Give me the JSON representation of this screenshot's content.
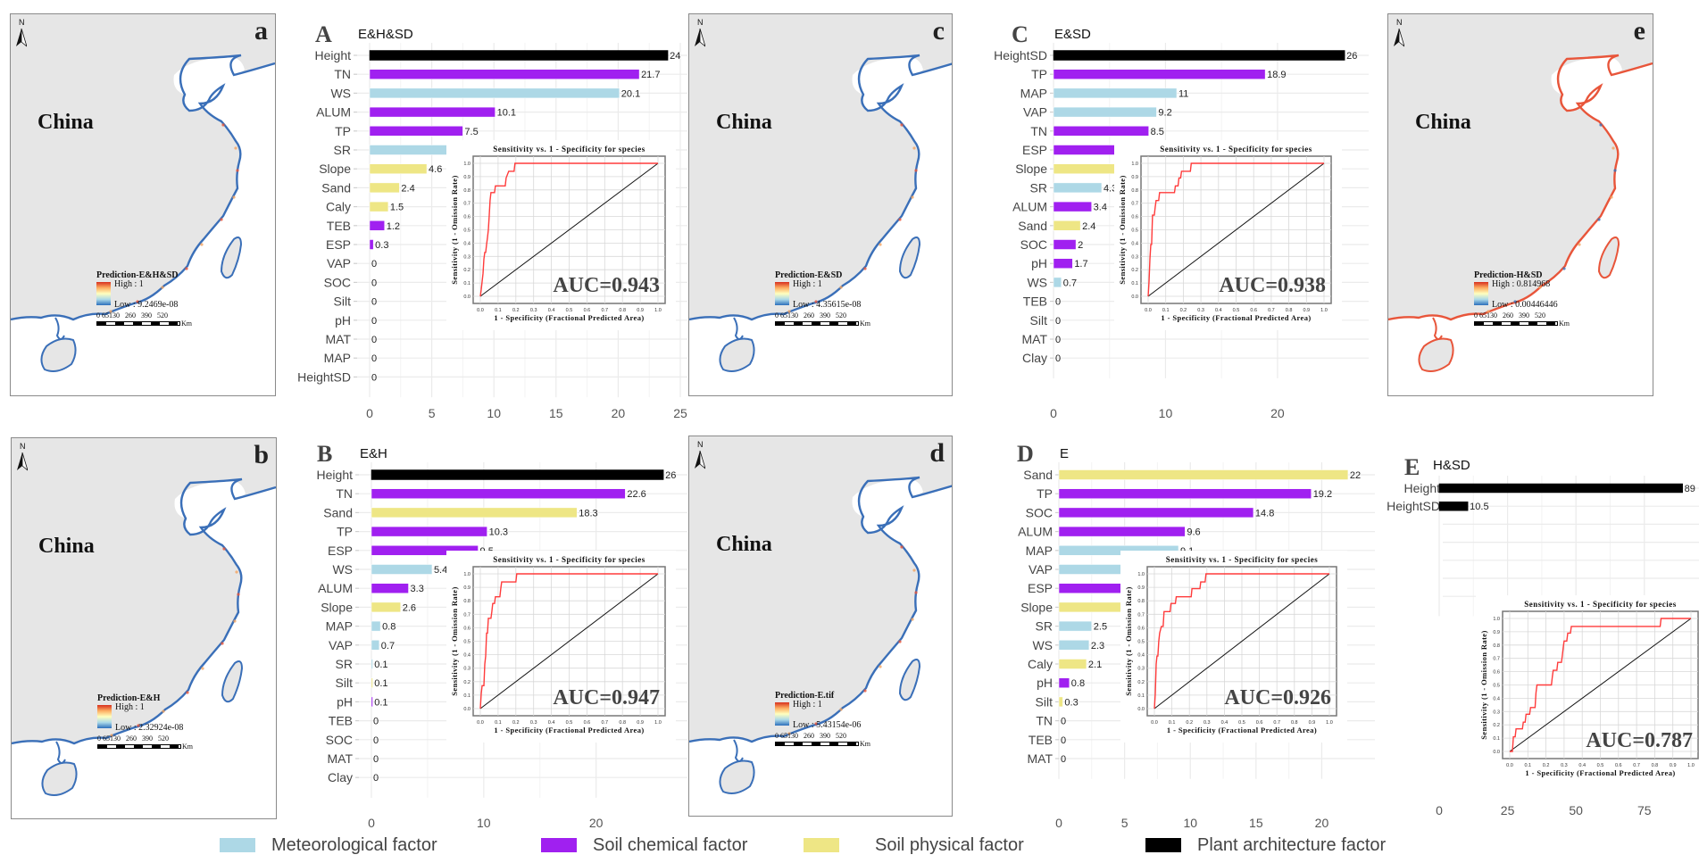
{
  "maps": [
    {
      "id": "a",
      "letter": "a",
      "country": "China",
      "north": "N",
      "legend_title": "Prediction-E&H&SD",
      "high": "High : 1",
      "low": "Low : 9.2469e-08",
      "scale": "0 65130   260   390   520",
      "unit": "Km",
      "risk": "low"
    },
    {
      "id": "c",
      "letter": "c",
      "country": "China",
      "north": "N",
      "legend_title": "Prediction-E&SD",
      "high": "High : 1",
      "low": "Low : 4.35615e-08",
      "scale": "0 65130   260   390   520",
      "unit": "Km",
      "risk": "low"
    },
    {
      "id": "e",
      "letter": "e",
      "country": "China",
      "north": "N",
      "legend_title": "Prediction-H&SD",
      "high": "High : 0.814968",
      "low": "Low : 0.00446446",
      "scale": "0 65130   260   390   520",
      "unit": "Km",
      "risk": "high"
    },
    {
      "id": "b",
      "letter": "b",
      "country": "China",
      "north": "N",
      "legend_title": "Prediction-E&H",
      "high": "High : 1",
      "low": "Low : 2.32924e-08",
      "scale": "0 65130   260   390   520",
      "unit": "Km",
      "risk": "low"
    },
    {
      "id": "d",
      "letter": "d",
      "country": "China",
      "north": "N",
      "legend_title": "Prediction-E.tif",
      "high": "High : 1",
      "low": "Low : 5.43154e-06",
      "scale": "0 65130   260   390   520",
      "unit": "Km",
      "risk": "low"
    }
  ],
  "colors": {
    "Meteorological factor": "#add8e6",
    "Soil chemical factor": "#a020f0",
    "Soil physical factor": "#eee685",
    "Plant architecture factor": "#000000",
    "roc_curve": "#ff3b3b",
    "roc_diagonal": "#111111"
  },
  "legend": [
    {
      "label": "Meteorological factor",
      "color": "#add8e6"
    },
    {
      "label": "Soil chemical factor",
      "color": "#a020f0"
    },
    {
      "label": "Soil physical factor",
      "color": "#eee685"
    },
    {
      "label": "Plant architecture factor",
      "color": "#000000"
    }
  ],
  "chart_data": [
    {
      "id": "A",
      "type": "bar",
      "orientation": "horizontal",
      "letter": "A",
      "title": "E&H&SD",
      "categories": [
        "Height",
        "TN",
        "WS",
        "ALUM",
        "TP",
        "SR",
        "Slope",
        "Sand",
        "Caly",
        "TEB",
        "ESP",
        "VAP",
        "SOC",
        "Silt",
        "pH",
        "MAT",
        "MAP",
        "HeightSD"
      ],
      "values": [
        24,
        21.7,
        20.1,
        10.1,
        7.5,
        6.4,
        4.6,
        2.4,
        1.5,
        1.2,
        0.3,
        0,
        0,
        0,
        0,
        0,
        0,
        0
      ],
      "value_labels": [
        "24",
        "21.7",
        "20.1",
        "10.1",
        "7.5",
        "6.4",
        "4.6",
        "2.4",
        "1.5",
        "1.2",
        "0.3",
        "0",
        "0",
        "0",
        "0",
        "0",
        "0",
        "0"
      ],
      "groups": [
        "Plant architecture factor",
        "Soil chemical factor",
        "Meteorological factor",
        "Soil chemical factor",
        "Soil chemical factor",
        "Meteorological factor",
        "Soil physical factor",
        "Soil physical factor",
        "Soil physical factor",
        "Soil chemical factor",
        "Soil chemical factor",
        "Meteorological factor",
        "Soil chemical factor",
        "Soil physical factor",
        "Soil chemical factor",
        "Meteorological factor",
        "Meteorological factor",
        "Plant architecture factor"
      ],
      "xlim": [
        0,
        25
      ],
      "xticks": [
        0,
        5,
        10,
        15,
        20,
        25
      ],
      "roc": {
        "title": "Sensitivity vs. 1 - Specificity for species",
        "xlabel": "1 - Specificity (Fractional Predicted Area)",
        "ylabel": "Sensitivity (1 - Omission Rate)",
        "auc": "AUC=0.943",
        "ticks": [
          "0.0",
          "0.1",
          "0.2",
          "0.3",
          "0.4",
          "0.5",
          "0.6",
          "0.7",
          "0.8",
          "0.9",
          "1.0"
        ],
        "curve": [
          [
            0,
            0
          ],
          [
            0.005,
            0.05
          ],
          [
            0.01,
            0.11
          ],
          [
            0.015,
            0.17
          ],
          [
            0.02,
            0.28
          ],
          [
            0.025,
            0.33
          ],
          [
            0.03,
            0.33
          ],
          [
            0.035,
            0.39
          ],
          [
            0.04,
            0.44
          ],
          [
            0.045,
            0.5
          ],
          [
            0.05,
            0.61
          ],
          [
            0.055,
            0.72
          ],
          [
            0.06,
            0.78
          ],
          [
            0.08,
            0.78
          ],
          [
            0.085,
            0.83
          ],
          [
            0.14,
            0.83
          ],
          [
            0.145,
            0.89
          ],
          [
            0.16,
            0.94
          ],
          [
            0.19,
            0.94
          ],
          [
            0.195,
            1.0
          ],
          [
            1.0,
            1.0
          ]
        ]
      }
    },
    {
      "id": "C",
      "type": "bar",
      "orientation": "horizontal",
      "letter": "C",
      "title": "E&SD",
      "categories": [
        "HeightSD",
        "TP",
        "MAP",
        "VAP",
        "TN",
        "ESP",
        "Slope",
        "SR",
        "ALUM",
        "Sand",
        "SOC",
        "pH",
        "WS",
        "TEB",
        "Silt",
        "MAT",
        "Clay"
      ],
      "values": [
        26,
        18.9,
        11,
        9.2,
        8.5,
        6.2,
        5.9,
        4.3,
        3.4,
        2.4,
        2,
        1.7,
        0.7,
        0,
        0,
        0,
        0
      ],
      "value_labels": [
        "26",
        "18.9",
        "11",
        "9.2",
        "8.5",
        "6.2",
        "5.9",
        "4.3",
        "3.4",
        "2.4",
        "2",
        "1.7",
        "0.7",
        "0",
        "0",
        "0",
        "0"
      ],
      "groups": [
        "Plant architecture factor",
        "Soil chemical factor",
        "Meteorological factor",
        "Meteorological factor",
        "Soil chemical factor",
        "Soil chemical factor",
        "Soil physical factor",
        "Meteorological factor",
        "Soil chemical factor",
        "Soil physical factor",
        "Soil chemical factor",
        "Soil chemical factor",
        "Meteorological factor",
        "Soil chemical factor",
        "Soil physical factor",
        "Meteorological factor",
        "Soil physical factor"
      ],
      "xlim": [
        0,
        27.5
      ],
      "xticks": [
        0,
        10,
        20
      ],
      "roc": {
        "title": "Sensitivity vs. 1 - Specificity for species",
        "xlabel": "1 - Specificity (Fractional Predicted Area)",
        "ylabel": "Sensitivity (1 - Omission Rate)",
        "auc": "AUC=0.938",
        "ticks": [
          "0.0",
          "0.1",
          "0.2",
          "0.3",
          "0.4",
          "0.5",
          "0.6",
          "0.7",
          "0.8",
          "0.9",
          "1.0"
        ],
        "curve": [
          [
            0,
            0
          ],
          [
            0.005,
            0.11
          ],
          [
            0.01,
            0.28
          ],
          [
            0.015,
            0.39
          ],
          [
            0.02,
            0.39
          ],
          [
            0.025,
            0.61
          ],
          [
            0.035,
            0.61
          ],
          [
            0.04,
            0.67
          ],
          [
            0.045,
            0.72
          ],
          [
            0.06,
            0.72
          ],
          [
            0.065,
            0.78
          ],
          [
            0.15,
            0.78
          ],
          [
            0.155,
            0.83
          ],
          [
            0.17,
            0.83
          ],
          [
            0.175,
            0.89
          ],
          [
            0.185,
            0.89
          ],
          [
            0.19,
            0.94
          ],
          [
            0.24,
            0.94
          ],
          [
            0.245,
            1.0
          ],
          [
            1.0,
            1.0
          ]
        ]
      }
    },
    {
      "id": "B",
      "type": "bar",
      "orientation": "horizontal",
      "letter": "B",
      "title": "E&H",
      "categories": [
        "Height",
        "TN",
        "Sand",
        "TP",
        "ESP",
        "WS",
        "ALUM",
        "Slope",
        "MAP",
        "VAP",
        "SR",
        "Silt",
        "pH",
        "TEB",
        "SOC",
        "MAT",
        "Clay"
      ],
      "values": [
        26,
        22.6,
        18.3,
        10.3,
        9.5,
        5.4,
        3.3,
        2.6,
        0.8,
        0.7,
        0.1,
        0.1,
        0.1,
        0,
        0,
        0,
        0
      ],
      "value_labels": [
        "26",
        "22.6",
        "18.3",
        "10.3",
        "9.5",
        "5.4",
        "3.3",
        "2.6",
        "0.8",
        "0.7",
        "0.1",
        "0.1",
        "0.1",
        "0",
        "0",
        "0",
        "0"
      ],
      "groups": [
        "Plant architecture factor",
        "Soil chemical factor",
        "Soil physical factor",
        "Soil chemical factor",
        "Soil chemical factor",
        "Meteorological factor",
        "Soil chemical factor",
        "Soil physical factor",
        "Meteorological factor",
        "Meteorological factor",
        "Meteorological factor",
        "Soil physical factor",
        "Soil chemical factor",
        "Soil chemical factor",
        "Soil chemical factor",
        "Meteorological factor",
        "Soil physical factor"
      ],
      "xlim": [
        0,
        27.5
      ],
      "xticks": [
        0,
        10,
        20
      ],
      "roc": {
        "title": "Sensitivity vs. 1 - Specificity for species",
        "xlabel": "1 - Specificity (Fractional Predicted Area)",
        "ylabel": "Sensitivity (1 - Omission Rate)",
        "auc": "AUC=0.947",
        "ticks": [
          "0.0",
          "0.1",
          "0.2",
          "0.3",
          "0.4",
          "0.5",
          "0.6",
          "0.7",
          "0.8",
          "0.9",
          "1.0"
        ],
        "curve": [
          [
            0,
            0
          ],
          [
            0.005,
            0.11
          ],
          [
            0.01,
            0.17
          ],
          [
            0.02,
            0.17
          ],
          [
            0.025,
            0.33
          ],
          [
            0.03,
            0.39
          ],
          [
            0.035,
            0.56
          ],
          [
            0.04,
            0.56
          ],
          [
            0.045,
            0.67
          ],
          [
            0.06,
            0.67
          ],
          [
            0.065,
            0.72
          ],
          [
            0.07,
            0.78
          ],
          [
            0.08,
            0.78
          ],
          [
            0.085,
            0.83
          ],
          [
            0.11,
            0.83
          ],
          [
            0.115,
            0.89
          ],
          [
            0.12,
            0.94
          ],
          [
            0.2,
            0.94
          ],
          [
            0.205,
            1.0
          ],
          [
            1.0,
            1.0
          ]
        ]
      }
    },
    {
      "id": "D",
      "type": "bar",
      "orientation": "horizontal",
      "letter": "D",
      "title": "E",
      "categories": [
        "Sand",
        "TP",
        "SOC",
        "ALUM",
        "MAP",
        "VAP",
        "ESP",
        "Slope",
        "SR",
        "WS",
        "Caly",
        "pH",
        "Silt",
        "TN",
        "TEB",
        "MAT"
      ],
      "values": [
        22,
        19.2,
        14.8,
        9.6,
        9.1,
        7.1,
        5.1,
        4.7,
        2.5,
        2.3,
        2.1,
        0.8,
        0.3,
        0,
        0,
        0
      ],
      "value_labels": [
        "22",
        "19.2",
        "14.8",
        "9.6",
        "9.1",
        "7.1",
        "5.1",
        "4.7",
        "2.5",
        "2.3",
        "2.1",
        "0.8",
        "0.3",
        "0",
        "0",
        "0"
      ],
      "groups": [
        "Soil physical factor",
        "Soil chemical factor",
        "Soil chemical factor",
        "Soil chemical factor",
        "Meteorological factor",
        "Meteorological factor",
        "Soil chemical factor",
        "Soil physical factor",
        "Meteorological factor",
        "Meteorological factor",
        "Soil physical factor",
        "Soil chemical factor",
        "Soil physical factor",
        "Soil chemical factor",
        "Soil chemical factor",
        "Meteorological factor"
      ],
      "xlim": [
        0,
        23.5
      ],
      "xticks": [
        0,
        5,
        10,
        15,
        20
      ],
      "roc": {
        "title": "Sensitivity vs. 1 - Specificity for species",
        "xlabel": "1 - Specificity (Fractional Predicted Area)",
        "ylabel": "Sensitivity (1 - Omission Rate)",
        "auc": "AUC=0.926",
        "ticks": [
          "0.0",
          "0.1",
          "0.2",
          "0.3",
          "0.4",
          "0.5",
          "0.6",
          "0.7",
          "0.8",
          "0.9",
          "1.0"
        ],
        "curve": [
          [
            0,
            0
          ],
          [
            0.005,
            0.11
          ],
          [
            0.01,
            0.33
          ],
          [
            0.015,
            0.39
          ],
          [
            0.02,
            0.39
          ],
          [
            0.025,
            0.5
          ],
          [
            0.03,
            0.56
          ],
          [
            0.04,
            0.61
          ],
          [
            0.05,
            0.61
          ],
          [
            0.055,
            0.72
          ],
          [
            0.09,
            0.72
          ],
          [
            0.095,
            0.78
          ],
          [
            0.12,
            0.78
          ],
          [
            0.125,
            0.83
          ],
          [
            0.21,
            0.83
          ],
          [
            0.215,
            0.89
          ],
          [
            0.26,
            0.89
          ],
          [
            0.265,
            0.94
          ],
          [
            0.29,
            0.94
          ],
          [
            0.295,
            1.0
          ],
          [
            1.0,
            1.0
          ]
        ]
      }
    },
    {
      "id": "E",
      "type": "bar",
      "orientation": "horizontal",
      "letter": "E",
      "title": "H&SD",
      "categories": [
        "Height",
        "HeightSD"
      ],
      "values": [
        89,
        10.5
      ],
      "value_labels": [
        "89",
        "10.5"
      ],
      "groups": [
        "Plant architecture factor",
        "Plant architecture factor"
      ],
      "empty_rows": 5,
      "xlim": [
        0,
        94
      ],
      "xticks": [
        0,
        25,
        50,
        75
      ],
      "roc": {
        "title": "Sensitivity vs. 1 - Specificity for species",
        "xlabel": "1 - Specificity (Fractional Predicted Area)",
        "ylabel": "Sensitivity (1 - Omission Rate)",
        "auc": "AUC=0.787",
        "ticks": [
          "0.0",
          "0.1",
          "0.2",
          "0.3",
          "0.4",
          "0.5",
          "0.6",
          "0.7",
          "0.8",
          "0.9",
          "1.0"
        ],
        "curve": [
          [
            0,
            0
          ],
          [
            0.015,
            0.0
          ],
          [
            0.02,
            0.11
          ],
          [
            0.03,
            0.11
          ],
          [
            0.035,
            0.17
          ],
          [
            0.07,
            0.17
          ],
          [
            0.075,
            0.22
          ],
          [
            0.085,
            0.22
          ],
          [
            0.09,
            0.28
          ],
          [
            0.11,
            0.28
          ],
          [
            0.115,
            0.33
          ],
          [
            0.14,
            0.33
          ],
          [
            0.145,
            0.44
          ],
          [
            0.15,
            0.5
          ],
          [
            0.23,
            0.5
          ],
          [
            0.235,
            0.56
          ],
          [
            0.24,
            0.61
          ],
          [
            0.26,
            0.61
          ],
          [
            0.265,
            0.67
          ],
          [
            0.285,
            0.67
          ],
          [
            0.29,
            0.72
          ],
          [
            0.295,
            0.78
          ],
          [
            0.3,
            0.83
          ],
          [
            0.315,
            0.83
          ],
          [
            0.32,
            0.89
          ],
          [
            0.335,
            0.89
          ],
          [
            0.34,
            0.94
          ],
          [
            0.83,
            0.94
          ],
          [
            0.835,
            1.0
          ],
          [
            1.0,
            1.0
          ]
        ]
      }
    }
  ]
}
